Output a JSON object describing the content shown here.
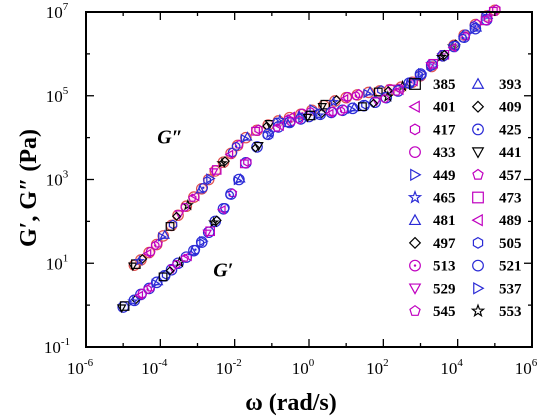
{
  "chart_data": {
    "type": "scatter",
    "title": "",
    "xlabel": "ω (rad/s)",
    "ylabel": "G′, G″ (Pa)",
    "x_scale": "log",
    "y_scale": "log",
    "xlim": [
      1e-06,
      1000000.0
    ],
    "ylim": [
      0.1,
      10000000.0
    ],
    "x_tick_values": [
      1e-06,
      0.0001,
      0.01,
      1,
      100.0,
      10000.0,
      1000000.0
    ],
    "x_tick_labels": [
      {
        "base": "10",
        "exp": "-6"
      },
      {
        "base": "10",
        "exp": "-4"
      },
      {
        "base": "10",
        "exp": "-2"
      },
      {
        "base": "10",
        "exp": "0"
      },
      {
        "base": "10",
        "exp": "2"
      },
      {
        "base": "10",
        "exp": "4"
      },
      {
        "base": "10",
        "exp": "6"
      }
    ],
    "y_tick_values": [
      0.1,
      10,
      1000,
      100000,
      10000000
    ],
    "y_tick_labels": [
      {
        "base": "10",
        "exp": "-1"
      },
      {
        "base": "10",
        "exp": "1"
      },
      {
        "base": "10",
        "exp": "3"
      },
      {
        "base": "10",
        "exp": "5"
      },
      {
        "base": "10",
        "exp": "7"
      }
    ],
    "annotations": [
      {
        "text": "G″",
        "x": 0.0006,
        "y": 3000
      },
      {
        "text": "G′",
        "x": 0.003,
        "y": 20
      }
    ],
    "legend_position": "right",
    "legend_entries": [
      {
        "label": "385",
        "marker": "square",
        "color": "#000000"
      },
      {
        "label": "393",
        "marker": "triangle-up",
        "color": "#2a2ad6"
      },
      {
        "label": "401",
        "marker": "triangle-left",
        "color": "#c000c0"
      },
      {
        "label": "409",
        "marker": "diamond",
        "color": "#000000"
      },
      {
        "label": "417",
        "marker": "hexagon",
        "color": "#c000c0"
      },
      {
        "label": "425",
        "marker": "circle-dot",
        "color": "#2a2ad6"
      },
      {
        "label": "433",
        "marker": "circle",
        "color": "#c000c0"
      },
      {
        "label": "441",
        "marker": "triangle-down",
        "color": "#000000"
      },
      {
        "label": "449",
        "marker": "triangle-right",
        "color": "#2a2ad6"
      },
      {
        "label": "457",
        "marker": "pentagon",
        "color": "#c000c0"
      },
      {
        "label": "465",
        "marker": "star",
        "color": "#2a2ad6"
      },
      {
        "label": "473",
        "marker": "square",
        "color": "#c000c0"
      },
      {
        "label": "481",
        "marker": "triangle-up",
        "color": "#2a2ad6"
      },
      {
        "label": "489",
        "marker": "triangle-left",
        "color": "#c000c0"
      },
      {
        "label": "497",
        "marker": "diamond",
        "color": "#000000"
      },
      {
        "label": "505",
        "marker": "hexagon",
        "color": "#2a2ad6"
      },
      {
        "label": "513",
        "marker": "circle-dot",
        "color": "#c000c0"
      },
      {
        "label": "521",
        "marker": "circle",
        "color": "#2a2ad6"
      },
      {
        "label": "529",
        "marker": "triangle-down",
        "color": "#c000c0"
      },
      {
        "label": "537",
        "marker": "triangle-right",
        "color": "#2a2ad6"
      },
      {
        "label": "545",
        "marker": "pentagon",
        "color": "#c000c0"
      },
      {
        "label": "553",
        "marker": "star",
        "color": "#000000"
      }
    ],
    "series": [
      {
        "quantity": "G″",
        "x": [
          2e-05,
          3e-05,
          5e-05,
          8e-05,
          0.00012,
          0.0002,
          0.0003,
          0.0005,
          0.0008,
          0.0013,
          0.002,
          0.003,
          0.005,
          0.008,
          0.012,
          0.02,
          0.04,
          0.08,
          0.15,
          0.3,
          0.6,
          1.2,
          2.5,
          5,
          10,
          20,
          40,
          80,
          150,
          300,
          600,
          1000,
          2000,
          4000,
          8000,
          15000,
          30000,
          60000,
          100000
        ],
        "y": [
          9,
          12,
          18,
          28,
          45,
          80,
          140,
          230,
          380,
          600,
          1000,
          1600,
          2600,
          4200,
          6500,
          10000,
          15000,
          20000,
          25000,
          30000,
          36000,
          45000,
          58000,
          75000,
          90000,
          105000,
          120000,
          130000,
          140000,
          160000,
          210000,
          300000,
          500000,
          900000,
          1600000,
          2800000,
          5000000,
          8000000,
          11000000
        ]
      },
      {
        "quantity": "G′",
        "x": [
          1e-05,
          2e-05,
          3e-05,
          5e-05,
          8e-05,
          0.00013,
          0.0002,
          0.0003,
          0.0005,
          0.0008,
          0.0013,
          0.002,
          0.003,
          0.005,
          0.008,
          0.013,
          0.02,
          0.04,
          0.08,
          0.15,
          0.3,
          0.6,
          1,
          2,
          4,
          8,
          15,
          30,
          60,
          120,
          250,
          500,
          1000,
          2000,
          4000,
          8000,
          15000,
          30000,
          60000
        ],
        "y": [
          0.9,
          1.3,
          1.8,
          2.5,
          3.5,
          5,
          7,
          10,
          14,
          20,
          32,
          55,
          100,
          200,
          450,
          1000,
          2500,
          6000,
          12000,
          18000,
          23000,
          28000,
          32000,
          36000,
          40000,
          45000,
          50000,
          58000,
          70000,
          90000,
          130000,
          200000,
          330000,
          550000,
          900000,
          1500000,
          2500000,
          4000000,
          6500000
        ]
      }
    ]
  }
}
